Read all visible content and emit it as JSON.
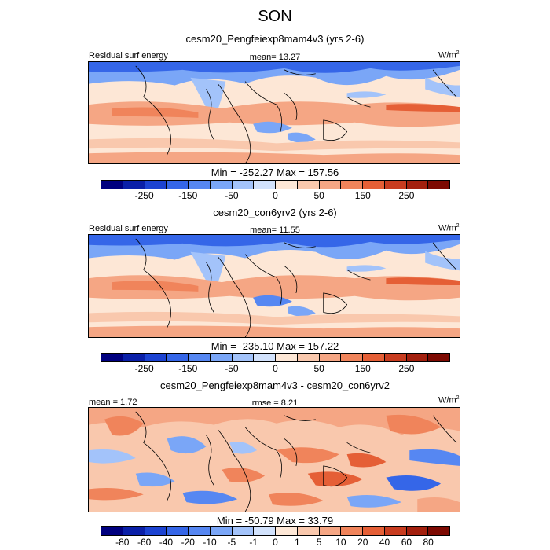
{
  "title": "SON",
  "units_label": "W/m",
  "units_sup": "2",
  "panels": [
    {
      "subtitle": "cesm20_Pengfeiexp8mam4v3 (yrs 2-6)",
      "left_label": "Residual surf energy",
      "center_label": "mean=  13.27",
      "minmax": "Min = -252.27 Max = 157.56",
      "colorbar_labels": [
        "-250",
        "-150",
        "-50",
        "0",
        "50",
        "150",
        "250"
      ]
    },
    {
      "subtitle": "cesm20_con6yrv2 (yrs 2-6)",
      "left_label": "Residual surf energy",
      "center_label": "mean=  11.55",
      "minmax": "Min = -235.10 Max = 157.22",
      "colorbar_labels": [
        "-250",
        "-150",
        "-50",
        "0",
        "50",
        "150",
        "250"
      ]
    },
    {
      "subtitle": "cesm20_Pengfeiexp8mam4v3 - cesm20_con6yrv2",
      "left_label": "mean =  1.72",
      "center_label": "rmse =  8.21",
      "minmax": "Min = -50.79 Max = 33.79",
      "colorbar_labels": [
        "-80",
        "-60",
        "-40",
        "-20",
        "-10",
        "-5",
        "-1",
        "0",
        "1",
        "5",
        "10",
        "20",
        "40",
        "60",
        "80"
      ]
    }
  ],
  "colorbar_colors": [
    "#00007f",
    "#0a1fa8",
    "#1c43d2",
    "#3566e8",
    "#5687f2",
    "#7aa6f7",
    "#a3c3fa",
    "#d2e2fc",
    "#fde7d6",
    "#f9c8ad",
    "#f5a684",
    "#f0845b",
    "#e55f36",
    "#c83c1f",
    "#a3200e",
    "#7d0a02"
  ]
}
